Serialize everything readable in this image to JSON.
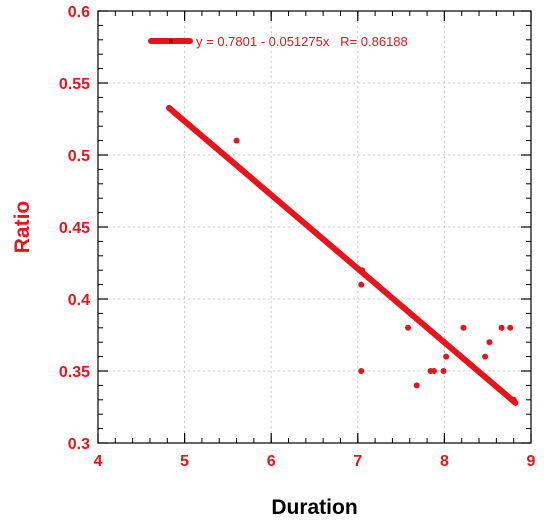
{
  "chart_data": {
    "type": "scatter",
    "xlabel": "Duration",
    "ylabel": "Ratio",
    "xlim": [
      4,
      9
    ],
    "ylim": [
      0.3,
      0.6
    ],
    "x_ticks": [
      4,
      5,
      6,
      7,
      8,
      9
    ],
    "y_ticks": [
      0.3,
      0.35,
      0.4,
      0.45,
      0.5,
      0.55,
      0.6
    ],
    "x_tick_labels": [
      "4",
      "5",
      "6",
      "7",
      "8",
      "9"
    ],
    "y_tick_labels": [
      "0.3",
      "0.35",
      "0.4",
      "0.45",
      "0.5",
      "0.55",
      "0.6"
    ],
    "grid": true,
    "legend_position": "top-left",
    "points": [
      {
        "x": 5.6,
        "y": 0.51
      },
      {
        "x": 7.05,
        "y": 0.42
      },
      {
        "x": 7.04,
        "y": 0.41
      },
      {
        "x": 7.04,
        "y": 0.35
      },
      {
        "x": 7.58,
        "y": 0.38
      },
      {
        "x": 7.68,
        "y": 0.34
      },
      {
        "x": 7.84,
        "y": 0.35
      },
      {
        "x": 7.88,
        "y": 0.35
      },
      {
        "x": 7.99,
        "y": 0.35
      },
      {
        "x": 8.02,
        "y": 0.36
      },
      {
        "x": 8.22,
        "y": 0.38
      },
      {
        "x": 8.47,
        "y": 0.36
      },
      {
        "x": 8.52,
        "y": 0.37
      },
      {
        "x": 8.66,
        "y": 0.38
      },
      {
        "x": 8.76,
        "y": 0.38
      },
      {
        "x": 8.8,
        "y": 0.33
      }
    ],
    "fit_line": {
      "x": [
        4.82,
        8.82
      ],
      "y": [
        0.5327,
        0.3279
      ]
    },
    "legend_label": "y = 0.7801 - 0.051275x   R= 0.86188",
    "colors": {
      "series": "#e8141b",
      "axis_title": "#000000",
      "grid": "#c8c8c8",
      "frame": "#000000"
    }
  }
}
